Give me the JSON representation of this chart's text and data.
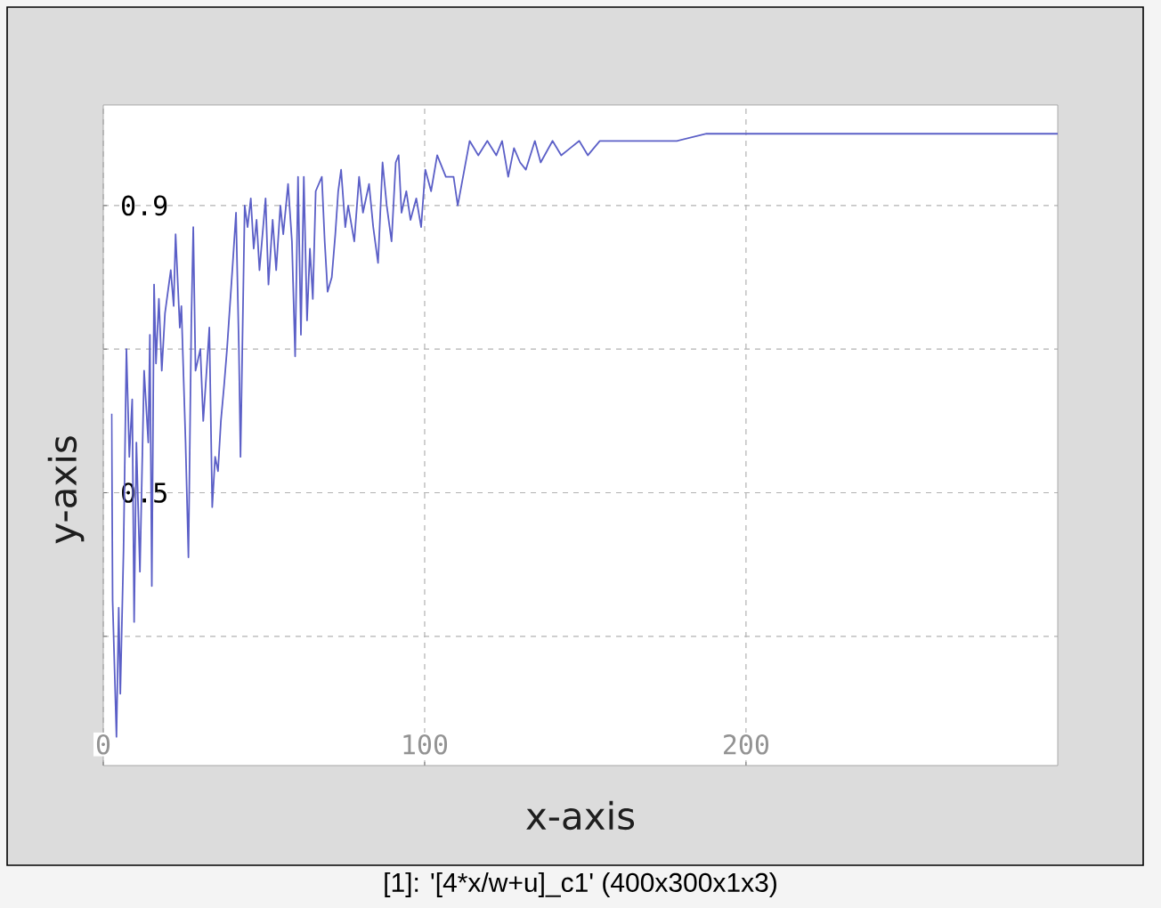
{
  "chart_data": {
    "type": "line",
    "xlabel": "x-axis",
    "ylabel": "y-axis",
    "annotations": [
      "[1]: '[4*x/w+u]_c1' (400x300x1x3)"
    ],
    "x": [
      2.6,
      2.9,
      4.1,
      4.8,
      5.3,
      6.3,
      7.2,
      8.1,
      9.0,
      9.6,
      10.3,
      11.4,
      12.7,
      14.0,
      14.5,
      15.1,
      15.8,
      16.4,
      17.3,
      18.2,
      19.2,
      21.0,
      21.9,
      22.5,
      23.8,
      24.3,
      25.6,
      26.5,
      27.4,
      28.0,
      28.7,
      30.2,
      31.1,
      32.0,
      33.0,
      33.9,
      34.8,
      35.7,
      36.6,
      37.6,
      38.5,
      40.3,
      41.3,
      42.2,
      42.7,
      44.0,
      44.9,
      45.9,
      46.8,
      47.7,
      48.6,
      50.5,
      51.4,
      52.7,
      53.8,
      55.1,
      56.0,
      57.5,
      58.7,
      59.7,
      60.6,
      61.5,
      62.4,
      63.4,
      64.3,
      65.2,
      66.1,
      68.0,
      68.9,
      69.8,
      71.1,
      72.2,
      73.1,
      74.0,
      75.3,
      76.2,
      78.1,
      79.6,
      80.8,
      82.7,
      84.0,
      85.5,
      86.9,
      88.2,
      89.7,
      91.0,
      91.9,
      92.8,
      94.3,
      95.6,
      97.4,
      98.9,
      100.2,
      102.0,
      103.9,
      106.6,
      109.0,
      110.3,
      114.0,
      116.7,
      119.5,
      122.3,
      124.1,
      126.0,
      127.8,
      129.7,
      131.5,
      134.3,
      136.1,
      139.8,
      142.5,
      145.3,
      148.1,
      150.8,
      154.5,
      160.0,
      169.2,
      178.5,
      187.7,
      196.9,
      222.7,
      297
    ],
    "series": [
      {
        "color": "#5b5fc7",
        "values": [
          0.61,
          0.35,
          0.16,
          0.34,
          0.22,
          0.42,
          0.7,
          0.55,
          0.63,
          0.32,
          0.57,
          0.39,
          0.67,
          0.57,
          0.72,
          0.37,
          0.79,
          0.68,
          0.77,
          0.67,
          0.75,
          0.81,
          0.76,
          0.86,
          0.73,
          0.76,
          0.57,
          0.41,
          0.74,
          0.87,
          0.67,
          0.7,
          0.6,
          0.66,
          0.73,
          0.48,
          0.55,
          0.53,
          0.6,
          0.65,
          0.7,
          0.82,
          0.89,
          0.7,
          0.55,
          0.9,
          0.87,
          0.91,
          0.84,
          0.88,
          0.81,
          0.91,
          0.79,
          0.88,
          0.81,
          0.9,
          0.86,
          0.93,
          0.85,
          0.69,
          0.94,
          0.72,
          0.94,
          0.74,
          0.84,
          0.77,
          0.92,
          0.94,
          0.85,
          0.78,
          0.8,
          0.86,
          0.92,
          0.95,
          0.87,
          0.9,
          0.85,
          0.94,
          0.89,
          0.93,
          0.87,
          0.82,
          0.96,
          0.9,
          0.85,
          0.96,
          0.97,
          0.89,
          0.92,
          0.88,
          0.91,
          0.87,
          0.95,
          0.92,
          0.97,
          0.94,
          0.94,
          0.9,
          0.99,
          0.97,
          0.99,
          0.97,
          0.99,
          0.94,
          0.98,
          0.96,
          0.95,
          0.99,
          0.96,
          0.99,
          0.97,
          0.98,
          0.99,
          0.97,
          0.99,
          0.99,
          0.99,
          0.99,
          1.0,
          1.0,
          1.0,
          1.0
        ]
      }
    ],
    "xlim": [
      0,
      297
    ],
    "ylim": [
      0.12,
      1.04
    ],
    "xticks": [
      0,
      100,
      200
    ],
    "yticks": [
      {
        "value": 0.3,
        "label": null
      },
      0.5,
      {
        "value": 0.7,
        "label": null
      },
      0.9
    ],
    "grid": true,
    "line_style": "solid"
  }
}
